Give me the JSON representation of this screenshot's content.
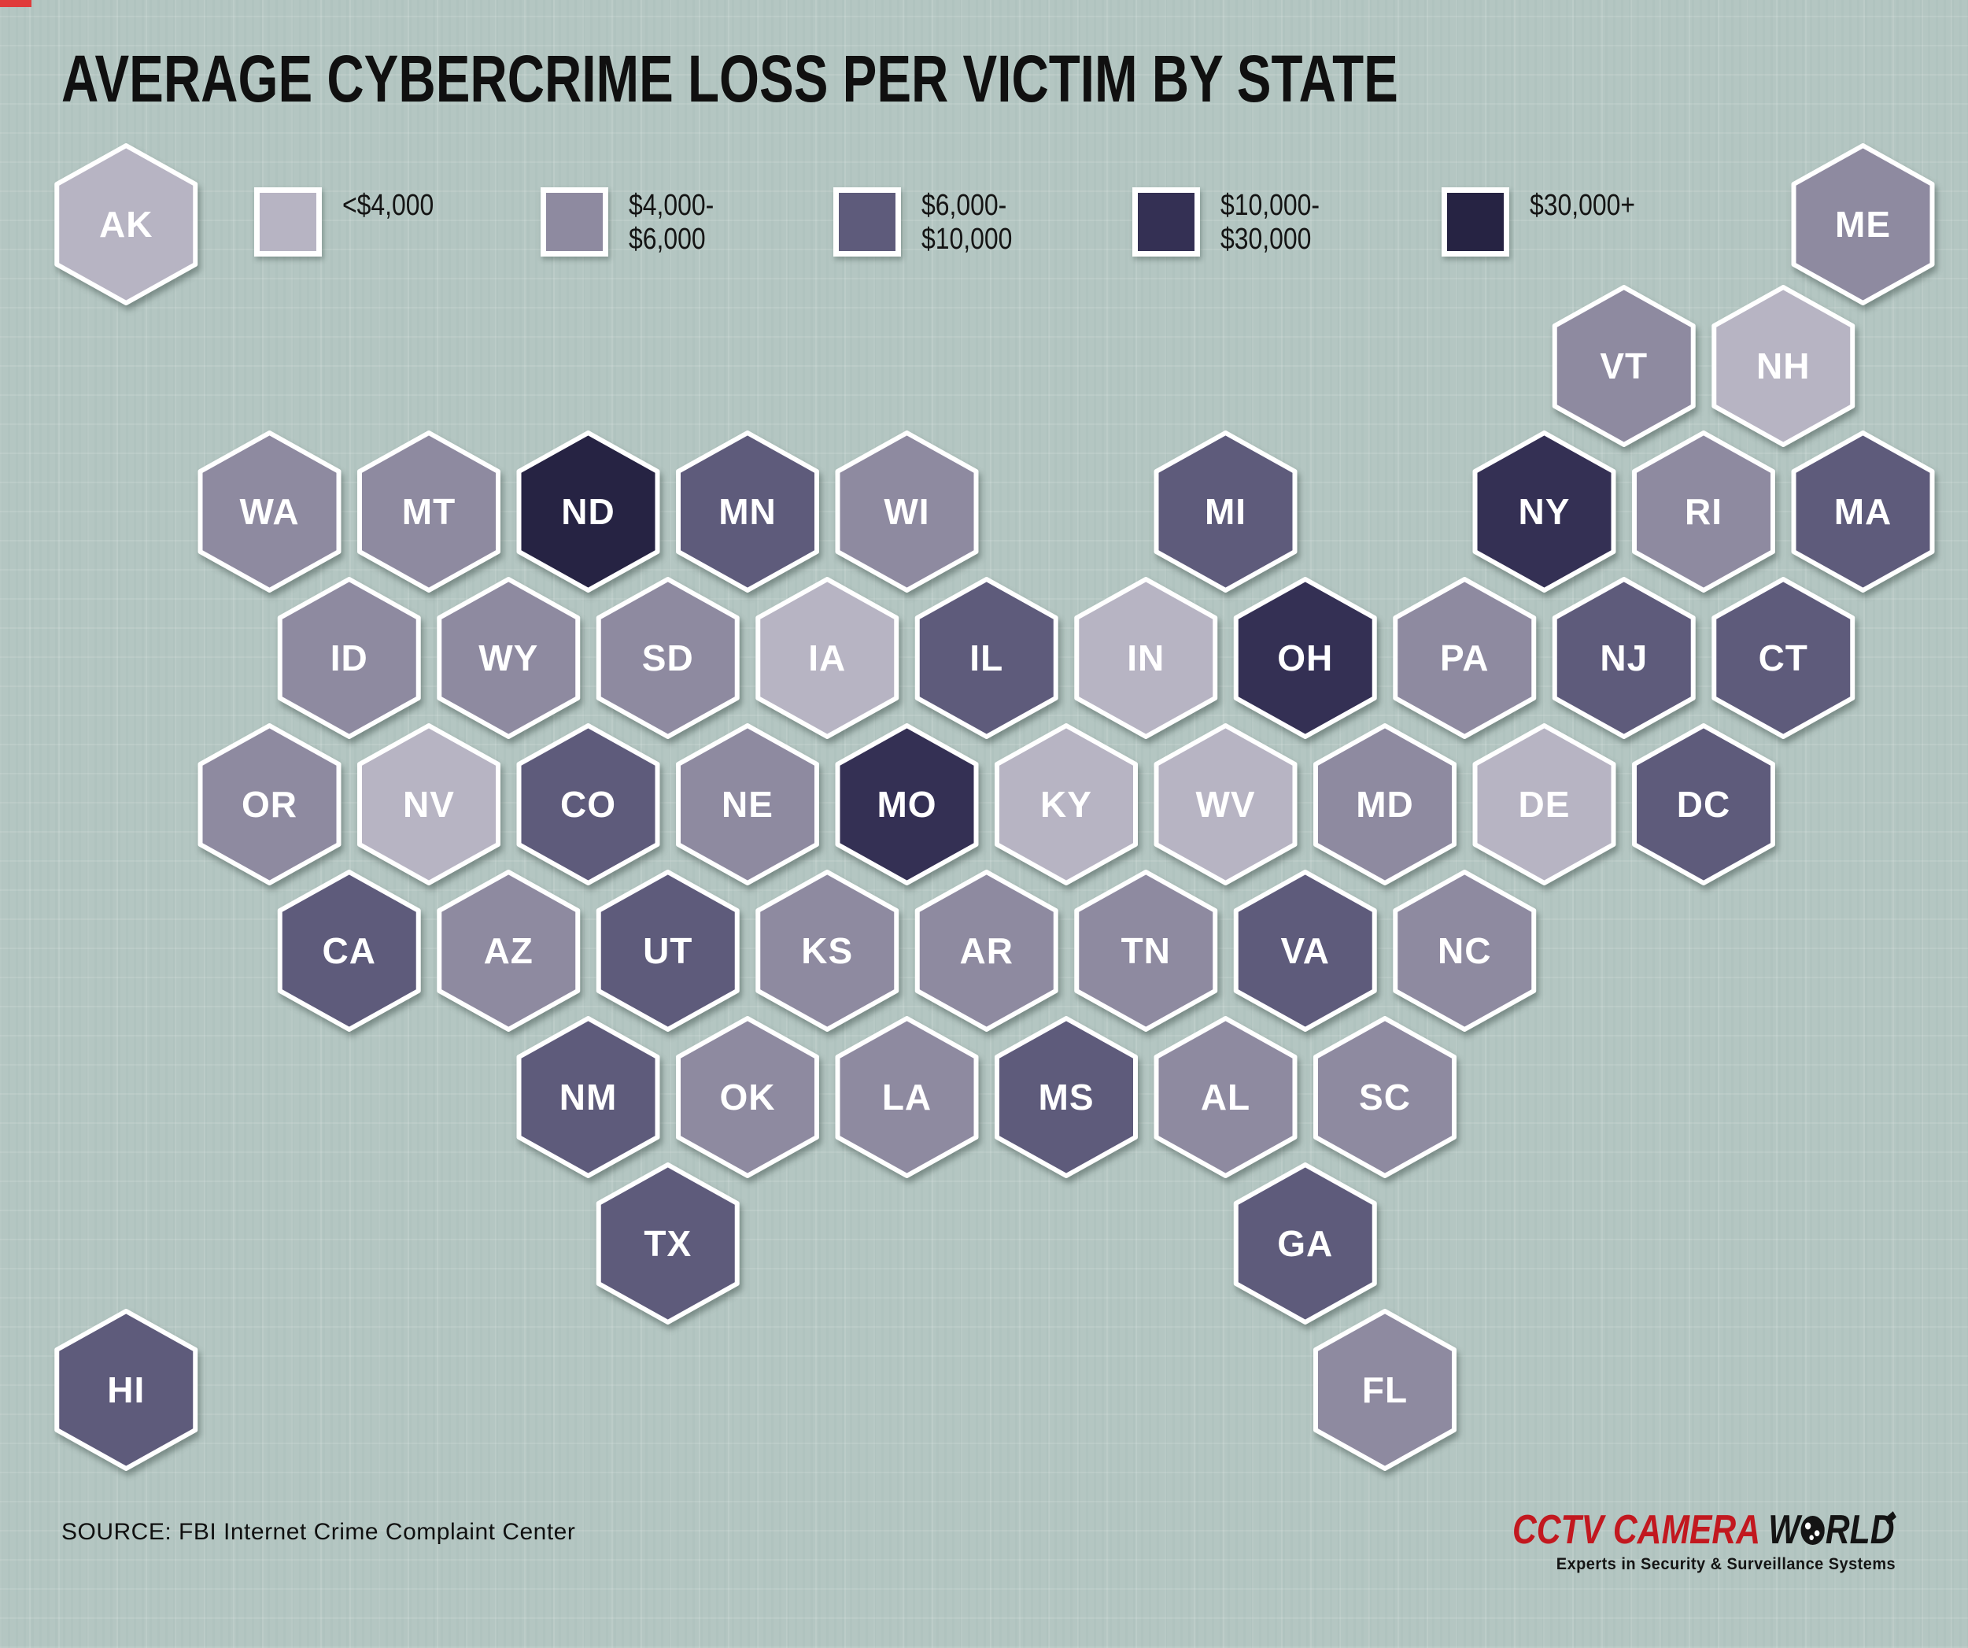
{
  "title": "AVERAGE CYBERCRIME LOSS PER VICTIM BY STATE",
  "source": "SOURCE: FBI Internet Crime Complaint Center",
  "logo": {
    "brand_red": "CCTV CAMERA",
    "brand_black_w": "W",
    "brand_black_rld": "RLD",
    "tagline": "Experts in Security & Surveillance Systems",
    "red_color": "#c2181f"
  },
  "background_color": "#b4c6c2",
  "hex_stroke_color": "#ffffff",
  "chart_data": {
    "type": "heatmap",
    "variant": "hex-tile-us-state-choropleth",
    "title": "AVERAGE CYBERCRIME LOSS PER VICTIM BY STATE",
    "legend_position": "top",
    "bins": [
      {
        "label": "<$4,000",
        "label_lines": [
          "<$4,000"
        ],
        "color": "#b7b4c3"
      },
      {
        "label": "$4,000-$6,000",
        "label_lines": [
          "$4,000-",
          "$6,000"
        ],
        "color": "#8e8aa0"
      },
      {
        "label": "$6,000-$10,000",
        "label_lines": [
          "$6,000-",
          "$10,000"
        ],
        "color": "#5e5b7b"
      },
      {
        "label": "$10,000-$30,000",
        "label_lines": [
          "$10,000-",
          "$30,000"
        ],
        "color": "#343054"
      },
      {
        "label": "$30,000+",
        "label_lines": [
          "$30,000+"
        ],
        "color": "#262343"
      }
    ],
    "states": [
      {
        "abbr": "AK",
        "row": "A",
        "col": 0.1,
        "bin": 0
      },
      {
        "abbr": "ME",
        "row": "A",
        "col": 11,
        "bin": 1
      },
      {
        "abbr": "VT",
        "row": "B",
        "col": 9.5,
        "bin": 1
      },
      {
        "abbr": "NH",
        "row": "B",
        "col": 10.5,
        "bin": 0
      },
      {
        "abbr": "WA",
        "row": "C",
        "col": 1,
        "bin": 1
      },
      {
        "abbr": "MT",
        "row": "C",
        "col": 2,
        "bin": 1
      },
      {
        "abbr": "ND",
        "row": "C",
        "col": 3,
        "bin": 4
      },
      {
        "abbr": "MN",
        "row": "C",
        "col": 4,
        "bin": 2
      },
      {
        "abbr": "WI",
        "row": "C",
        "col": 5,
        "bin": 1
      },
      {
        "abbr": "MI",
        "row": "C",
        "col": 7,
        "bin": 2
      },
      {
        "abbr": "NY",
        "row": "C",
        "col": 9,
        "bin": 3
      },
      {
        "abbr": "RI",
        "row": "C",
        "col": 10,
        "bin": 1
      },
      {
        "abbr": "MA",
        "row": "C",
        "col": 11,
        "bin": 2
      },
      {
        "abbr": "ID",
        "row": "D",
        "col": 1.5,
        "bin": 1
      },
      {
        "abbr": "WY",
        "row": "D",
        "col": 2.5,
        "bin": 1
      },
      {
        "abbr": "SD",
        "row": "D",
        "col": 3.5,
        "bin": 1
      },
      {
        "abbr": "IA",
        "row": "D",
        "col": 4.5,
        "bin": 0
      },
      {
        "abbr": "IL",
        "row": "D",
        "col": 5.5,
        "bin": 2
      },
      {
        "abbr": "IN",
        "row": "D",
        "col": 6.5,
        "bin": 0
      },
      {
        "abbr": "OH",
        "row": "D",
        "col": 7.5,
        "bin": 3
      },
      {
        "abbr": "PA",
        "row": "D",
        "col": 8.5,
        "bin": 1
      },
      {
        "abbr": "NJ",
        "row": "D",
        "col": 9.5,
        "bin": 2
      },
      {
        "abbr": "CT",
        "row": "D",
        "col": 10.5,
        "bin": 2
      },
      {
        "abbr": "OR",
        "row": "E",
        "col": 1,
        "bin": 1
      },
      {
        "abbr": "NV",
        "row": "E",
        "col": 2,
        "bin": 0
      },
      {
        "abbr": "CO",
        "row": "E",
        "col": 3,
        "bin": 2
      },
      {
        "abbr": "NE",
        "row": "E",
        "col": 4,
        "bin": 1
      },
      {
        "abbr": "MO",
        "row": "E",
        "col": 5,
        "bin": 3
      },
      {
        "abbr": "KY",
        "row": "E",
        "col": 6,
        "bin": 0
      },
      {
        "abbr": "WV",
        "row": "E",
        "col": 7,
        "bin": 0
      },
      {
        "abbr": "MD",
        "row": "E",
        "col": 8,
        "bin": 1
      },
      {
        "abbr": "DE",
        "row": "E",
        "col": 9,
        "bin": 0
      },
      {
        "abbr": "DC",
        "row": "E",
        "col": 10,
        "bin": 2
      },
      {
        "abbr": "CA",
        "row": "F",
        "col": 1.5,
        "bin": 2
      },
      {
        "abbr": "AZ",
        "row": "F",
        "col": 2.5,
        "bin": 1
      },
      {
        "abbr": "UT",
        "row": "F",
        "col": 3.5,
        "bin": 2
      },
      {
        "abbr": "KS",
        "row": "F",
        "col": 4.5,
        "bin": 1
      },
      {
        "abbr": "AR",
        "row": "F",
        "col": 5.5,
        "bin": 1
      },
      {
        "abbr": "TN",
        "row": "F",
        "col": 6.5,
        "bin": 1
      },
      {
        "abbr": "VA",
        "row": "F",
        "col": 7.5,
        "bin": 2
      },
      {
        "abbr": "NC",
        "row": "F",
        "col": 8.5,
        "bin": 1
      },
      {
        "abbr": "NM",
        "row": "G",
        "col": 3,
        "bin": 2
      },
      {
        "abbr": "OK",
        "row": "G",
        "col": 4,
        "bin": 1
      },
      {
        "abbr": "LA",
        "row": "G",
        "col": 5,
        "bin": 1
      },
      {
        "abbr": "MS",
        "row": "G",
        "col": 6,
        "bin": 2
      },
      {
        "abbr": "AL",
        "row": "G",
        "col": 7,
        "bin": 1
      },
      {
        "abbr": "SC",
        "row": "G",
        "col": 8,
        "bin": 1
      },
      {
        "abbr": "TX",
        "row": "H",
        "col": 3.5,
        "bin": 2
      },
      {
        "abbr": "GA",
        "row": "H",
        "col": 7.5,
        "bin": 2
      },
      {
        "abbr": "HI",
        "row": "I",
        "col": 0.1,
        "bin": 2
      },
      {
        "abbr": "FL",
        "row": "I",
        "col": 8,
        "bin": 1
      }
    ]
  }
}
